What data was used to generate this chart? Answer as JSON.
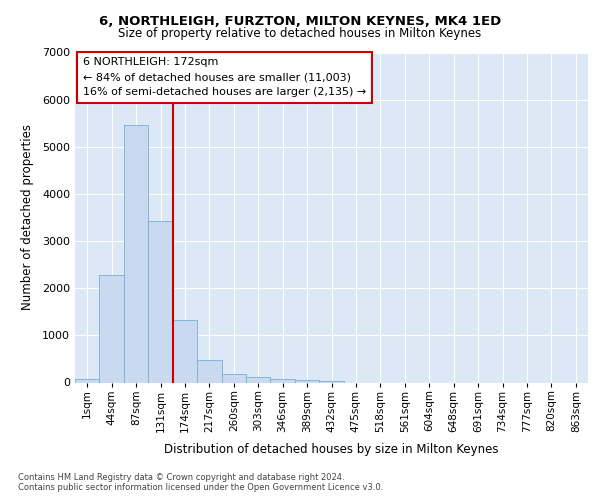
{
  "title1": "6, NORTHLEIGH, FURZTON, MILTON KEYNES, MK4 1ED",
  "title2": "Size of property relative to detached houses in Milton Keynes",
  "xlabel": "Distribution of detached houses by size in Milton Keynes",
  "ylabel": "Number of detached properties",
  "categories": [
    "1sqm",
    "44sqm",
    "87sqm",
    "131sqm",
    "174sqm",
    "217sqm",
    "260sqm",
    "303sqm",
    "346sqm",
    "389sqm",
    "432sqm",
    "475sqm",
    "518sqm",
    "561sqm",
    "604sqm",
    "648sqm",
    "691sqm",
    "734sqm",
    "777sqm",
    "820sqm",
    "863sqm"
  ],
  "values": [
    75,
    2280,
    5470,
    3420,
    1330,
    470,
    190,
    115,
    80,
    50,
    35,
    0,
    0,
    0,
    0,
    0,
    0,
    0,
    0,
    0,
    0
  ],
  "bar_color": "#c8d9f0",
  "bar_edge_color": "#7aaed6",
  "vline_color": "#cc0000",
  "vline_pos": 4,
  "annotation_text": "6 NORTHLEIGH: 172sqm\n← 84% of detached houses are smaller (11,003)\n16% of semi-detached houses are larger (2,135) →",
  "annotation_box_edgecolor": "#cc0000",
  "ylim": [
    0,
    7000
  ],
  "yticks": [
    0,
    1000,
    2000,
    3000,
    4000,
    5000,
    6000,
    7000
  ],
  "bg_color": "#dce8f5",
  "footer1": "Contains HM Land Registry data © Crown copyright and database right 2024.",
  "footer2": "Contains public sector information licensed under the Open Government Licence v3.0."
}
